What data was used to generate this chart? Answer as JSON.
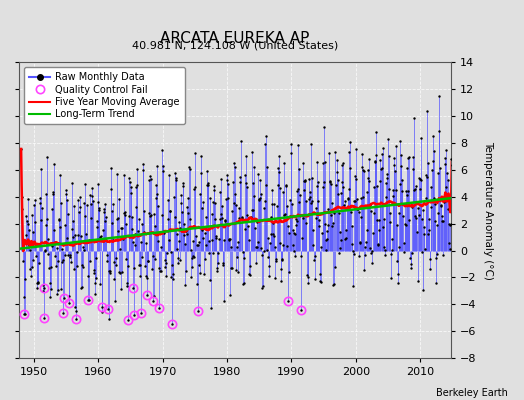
{
  "title": "ARCATA EUREKA AP",
  "subtitle": "40.981 N, 124.108 W (United States)",
  "ylabel": "Temperature Anomaly (°C)",
  "credit": "Berkeley Earth",
  "year_start": 1948,
  "year_end": 2014,
  "ylim": [
    -8,
    14
  ],
  "yticks": [
    -8,
    -6,
    -4,
    -2,
    0,
    2,
    4,
    6,
    8,
    10,
    12,
    14
  ],
  "xticks": [
    1950,
    1960,
    1970,
    1980,
    1990,
    2000,
    2010
  ],
  "raw_color": "#5555ff",
  "marker_color": "#000000",
  "qc_color": "#ff44ff",
  "moving_avg_color": "#ff0000",
  "trend_color": "#00bb00",
  "background_color": "#e0e0e0",
  "legend_items": [
    "Raw Monthly Data",
    "Quality Control Fail",
    "Five Year Moving Average",
    "Long-Term Trend"
  ]
}
